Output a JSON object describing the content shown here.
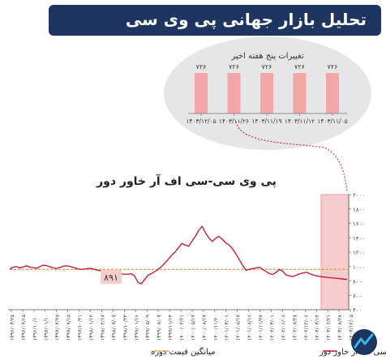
{
  "header": {
    "title": "تحلیل بازار جهانی پی وی سی"
  },
  "colors": {
    "banner": "#1e3461",
    "line": "#c8102e",
    "avg": "#f08a30",
    "bar": "#f4a6a6",
    "band": "#f6cccc"
  },
  "chart_data": [
    {
      "type": "bar",
      "title": "تغییرات پنج هفته اخیر",
      "categories": [
        "۱۴۰۳/۱۱/۰۵",
        "۱۴۰۳/۱۱/۱۲",
        "۱۴۰۳/۱۱/۱۹",
        "۱۴۰۳/۱۱/۲۶",
        "۱۴۰۳/۱۲/۰۵"
      ],
      "values": [
        726,
        726,
        726,
        726,
        726
      ],
      "value_labels": [
        "۷۲۶",
        "۷۲۶",
        "۷۲۶",
        "۷۲۶",
        "۷۲۶"
      ],
      "order": "right-to-left"
    },
    {
      "type": "line",
      "title": "پی وی سی-سی اف آر خاور دور",
      "ylim": [
        400,
        2000
      ],
      "yticks": [
        400,
        600,
        800,
        1000,
        1200,
        1400,
        1600,
        1800,
        2000
      ],
      "ytick_labels": [
        "۴۰۰",
        "۶۰۰",
        "۸۰۰",
        "۱۰۰۰",
        "۱۲۰۰",
        "۱۴۰۰",
        "۱۶۰۰",
        "۱۸۰۰",
        "۲۰۰۰"
      ],
      "xtick_labels": [
        "۱۳۹۶/۰۳/۲۵",
        "۱۳۹۶/۰۷/۱۵",
        "۱۳۹۶/۱۰/۱۰",
        "۱۳۹۷/۰۱/۱۰",
        "۱۳۹۷/۰۴/۲۵",
        "۱۳۹۷/۰۷/۱۵",
        "۱۳۹۷/۱۰/۲۱",
        "۱۳۹۸/۰۱/۱۲",
        "۱۳۹۸/۰۴/۱۸",
        "۱۳۹۸/۰۷/۰۷",
        "۱۳۹۸/۱۰/۲۲",
        "۱۳۹۹/۰۱/۱۶",
        "۱۳۹۹/۰۵/۰۹",
        "۱۳۹۹/۰۸/۰۷",
        "۱۳۹۹/۱۱/۱۴",
        "۱۴۰۰/۰۲/۲۱",
        "۱۴۰۰/۰۵/۱۷",
        "۱۴۰۰/۰۸/۱۷",
        "۱۴۰۰/۱۱/۲۰",
        "۱۴۰۱/۰۳/۰۱",
        "۱۴۰۱/۰۵/۱۷",
        "۱۴۰۱/۰۸/۱۶",
        "۱۴۰۱/۱۱/۲۷",
        "۱۴۰۲/۰۳/۰۱",
        "۱۴۰۲/۰۶/۰۶",
        "۱۴۰۲/۰۸/۲۸",
        "۱۴۰۲/۱۲/۰۶",
        "۱۴۰۳/۰۳/۱۴",
        "۱۴۰۳/۰۶/۲۱",
        "۱۴۰۳/۰۸/۲۸",
        "۱۴۰۳/۱۲/۰۵"
      ],
      "series": [
        {
          "name": "پی وی سی-سی اف آر خاور دور",
          "values": [
            960,
            990,
            1000,
            980,
            995,
            1010,
            990,
            985,
            975,
            1000,
            1020,
            1010,
            995,
            980,
            975,
            990,
            1005,
            1010,
            1000,
            985,
            970,
            960,
            965,
            970,
            975,
            960,
            950,
            940,
            930,
            925,
            920,
            915,
            905,
            900,
            891,
            895,
            900,
            870,
            780,
            760,
            820,
            880,
            900,
            930,
            960,
            1000,
            1050,
            1100,
            1160,
            1200,
            1260,
            1320,
            1300,
            1280,
            1350,
            1420,
            1500,
            1560,
            1470,
            1400,
            1350,
            1390,
            1420,
            1380,
            1330,
            1300,
            1250,
            1180,
            1100,
            1020,
            950,
            960,
            970,
            980,
            990,
            960,
            930,
            900,
            890,
            920,
            960,
            930,
            880,
            870,
            860,
            880,
            900,
            910,
            920,
            900,
            880,
            870,
            860,
            855,
            850,
            845,
            840,
            835,
            830,
            825,
            820
          ]
        },
        {
          "name": "میانگین قیمت دوره",
          "values": [
            960
          ]
        }
      ],
      "callout": "۸۹۱",
      "legend": [
        "پی وی سی-سی اف آر خاور دور",
        "میانگین قیمت دوره"
      ],
      "legend_position": "bottom"
    }
  ]
}
